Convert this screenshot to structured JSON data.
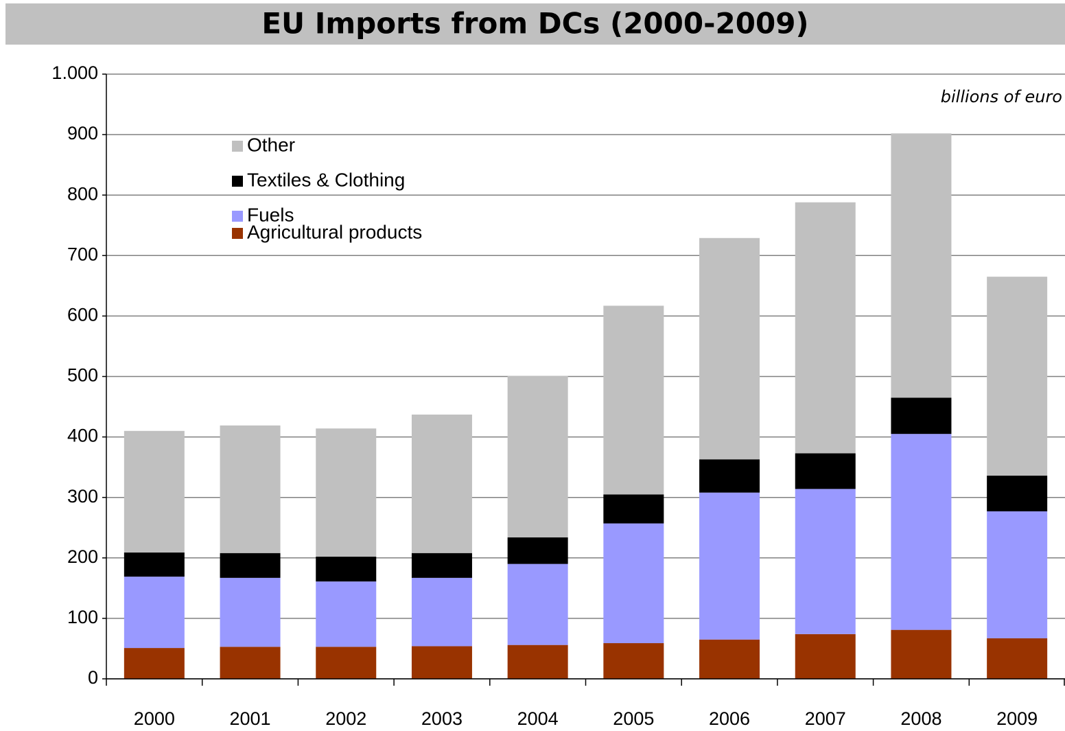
{
  "chart_data": {
    "type": "stacked_bar",
    "title": "EU Imports from DCs (2000-2009)",
    "annotation": "billions of euro",
    "categories": [
      "2000",
      "2001",
      "2002",
      "2003",
      "2004",
      "2005",
      "2006",
      "2007",
      "2008",
      "2009"
    ],
    "series": [
      {
        "name": "Agricultural products",
        "color": "#993300",
        "values": [
          51,
          53,
          53,
          54,
          56,
          59,
          65,
          74,
          81,
          67
        ]
      },
      {
        "name": "Fuels",
        "color": "#9999ff",
        "values": [
          118,
          114,
          108,
          113,
          134,
          198,
          243,
          240,
          324,
          210
        ]
      },
      {
        "name": "Textiles & Clothing",
        "color": "#000000",
        "values": [
          40,
          41,
          41,
          41,
          44,
          48,
          55,
          59,
          60,
          59
        ]
      },
      {
        "name": "Other",
        "color": "#c0c0c0",
        "values": [
          201,
          211,
          212,
          229,
          267,
          312,
          366,
          415,
          437,
          329
        ]
      }
    ],
    "ylim": [
      0,
      1000
    ],
    "yticks": [
      0,
      100,
      200,
      300,
      400,
      500,
      600,
      700,
      800,
      900,
      {
        "value": 1000,
        "label": "1.000"
      }
    ],
    "grid": true
  }
}
